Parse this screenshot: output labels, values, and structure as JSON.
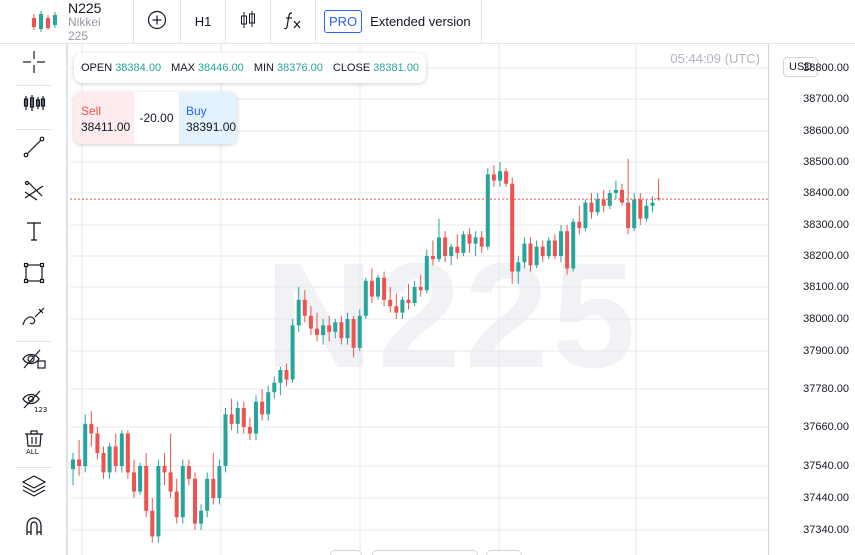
{
  "symbol": {
    "ticker": "N225",
    "name": "Nikkei 225",
    "icon": "candles-icon"
  },
  "toolbar": {
    "add_icon": "plus-circle-icon",
    "timeframe": "H1",
    "chart_type_icon": "candlestick-icon",
    "indicators_icon": "fx-icon",
    "pro_label": "PRO",
    "extended_label": "Extended version"
  },
  "left_tools": [
    {
      "name": "crosshair-icon"
    },
    {
      "name": "indicators-icon"
    },
    {
      "name": "trend-line-icon"
    },
    {
      "name": "fib-tools-icon"
    },
    {
      "name": "text-icon"
    },
    {
      "name": "rectangle-icon"
    },
    {
      "name": "brush-icon"
    },
    {
      "name": "hide-drawings-icon"
    },
    {
      "name": "hide-indicators-icon"
    },
    {
      "name": "remove-all-icon"
    },
    {
      "name": "layers-icon"
    },
    {
      "name": "magnet-icon"
    }
  ],
  "ohlc": {
    "open_label": "OPEN",
    "open": "38384.00",
    "max_label": "MAX",
    "max": "38446.00",
    "min_label": "MIN",
    "min": "38376.00",
    "close_label": "CLOSE",
    "close": "38381.00"
  },
  "trade": {
    "sell_label": "Sell",
    "sell_price": "38411.00",
    "spread": "-20.00",
    "buy_label": "Buy",
    "buy_price": "38391.00"
  },
  "time": "05:44:09 (UTC)",
  "watermark": "N225",
  "currency": "USD",
  "colors": {
    "up": "#26a69a",
    "down": "#ef5350",
    "grid": "#e6e8ec",
    "price_line": "#ef5350"
  },
  "chart_data": {
    "type": "candlestick",
    "y_ticks": [
      {
        "label": "38800.00",
        "value": 38800
      },
      {
        "label": "38700.00",
        "value": 38700
      },
      {
        "label": "38600.00",
        "value": 38600
      },
      {
        "label": "38500.00",
        "value": 38500
      },
      {
        "label": "38400.00",
        "value": 38400
      },
      {
        "label": "38300.00",
        "value": 38300
      },
      {
        "label": "38200.00",
        "value": 38200
      },
      {
        "label": "38100.00",
        "value": 38100
      },
      {
        "label": "38000.00",
        "value": 38000
      },
      {
        "label": "37900.00",
        "value": 37900
      },
      {
        "label": "37780.00",
        "value": 37780
      },
      {
        "label": "37660.00",
        "value": 37660
      },
      {
        "label": "37540.00",
        "value": 37540
      },
      {
        "label": "37440.00",
        "value": 37440
      },
      {
        "label": "37340.00",
        "value": 37340
      }
    ],
    "current_price": 38381,
    "candles": [
      [
        37530,
        37580,
        37480,
        37560
      ],
      [
        37560,
        37620,
        37510,
        37540
      ],
      [
        37540,
        37700,
        37520,
        37670
      ],
      [
        37670,
        37710,
        37600,
        37640
      ],
      [
        37640,
        37660,
        37560,
        37580
      ],
      [
        37580,
        37600,
        37500,
        37520
      ],
      [
        37520,
        37610,
        37500,
        37600
      ],
      [
        37600,
        37640,
        37520,
        37540
      ],
      [
        37540,
        37650,
        37520,
        37640
      ],
      [
        37640,
        37650,
        37500,
        37520
      ],
      [
        37520,
        37560,
        37440,
        37460
      ],
      [
        37460,
        37550,
        37450,
        37540
      ],
      [
        37540,
        37580,
        37380,
        37400
      ],
      [
        37400,
        37440,
        37300,
        37320
      ],
      [
        37320,
        37560,
        37300,
        37540
      ],
      [
        37540,
        37580,
        37480,
        37520
      ],
      [
        37520,
        37640,
        37440,
        37460
      ],
      [
        37460,
        37500,
        37360,
        37380
      ],
      [
        37380,
        37560,
        37360,
        37540
      ],
      [
        37540,
        37560,
        37480,
        37500
      ],
      [
        37500,
        37520,
        37340,
        37360
      ],
      [
        37360,
        37420,
        37340,
        37400
      ],
      [
        37400,
        37520,
        37380,
        37500
      ],
      [
        37500,
        37580,
        37420,
        37440
      ],
      [
        37440,
        37560,
        37420,
        37540
      ],
      [
        37540,
        37720,
        37520,
        37700
      ],
      [
        37700,
        37750,
        37650,
        37670
      ],
      [
        37670,
        37740,
        37640,
        37720
      ],
      [
        37720,
        37740,
        37640,
        37660
      ],
      [
        37660,
        37690,
        37620,
        37640
      ],
      [
        37640,
        37760,
        37620,
        37740
      ],
      [
        37740,
        37780,
        37680,
        37700
      ],
      [
        37700,
        37790,
        37680,
        37770
      ],
      [
        37770,
        37820,
        37750,
        37800
      ],
      [
        37800,
        37850,
        37760,
        37840
      ],
      [
        37840,
        37860,
        37790,
        37810
      ],
      [
        37810,
        38000,
        37800,
        37980
      ],
      [
        37980,
        38100,
        37960,
        38060
      ],
      [
        38060,
        38090,
        37990,
        38010
      ],
      [
        38010,
        38040,
        37950,
        37970
      ],
      [
        37970,
        38020,
        37930,
        37950
      ],
      [
        37950,
        38000,
        37920,
        37980
      ],
      [
        37980,
        38010,
        37930,
        37960
      ],
      [
        37960,
        38000,
        37940,
        37990
      ],
      [
        37990,
        38010,
        37920,
        37940
      ],
      [
        37940,
        38020,
        37920,
        38000
      ],
      [
        38000,
        38010,
        37880,
        37910
      ],
      [
        37910,
        38030,
        37900,
        38010
      ],
      [
        38010,
        38130,
        38000,
        38120
      ],
      [
        38120,
        38160,
        38050,
        38070
      ],
      [
        38070,
        38140,
        38060,
        38130
      ],
      [
        38130,
        38150,
        38040,
        38060
      ],
      [
        38060,
        38100,
        38020,
        38040
      ],
      [
        38040,
        38080,
        38000,
        38020
      ],
      [
        38020,
        38070,
        38000,
        38060
      ],
      [
        38060,
        38110,
        38030,
        38050
      ],
      [
        38050,
        38120,
        38040,
        38100
      ],
      [
        38100,
        38140,
        38070,
        38090
      ],
      [
        38090,
        38220,
        38080,
        38200
      ],
      [
        38200,
        38250,
        38170,
        38190
      ],
      [
        38190,
        38320,
        38180,
        38260
      ],
      [
        38260,
        38280,
        38180,
        38200
      ],
      [
        38200,
        38240,
        38170,
        38230
      ],
      [
        38230,
        38270,
        38190,
        38210
      ],
      [
        38210,
        38280,
        38200,
        38270
      ],
      [
        38270,
        38290,
        38210,
        38240
      ],
      [
        38240,
        38280,
        38200,
        38260
      ],
      [
        38260,
        38280,
        38210,
        38230
      ],
      [
        38230,
        38480,
        38220,
        38460
      ],
      [
        38460,
        38490,
        38420,
        38440
      ],
      [
        38440,
        38500,
        38420,
        38470
      ],
      [
        38470,
        38480,
        38420,
        38430
      ],
      [
        38430,
        38450,
        38110,
        38150
      ],
      [
        38150,
        38200,
        38110,
        38180
      ],
      [
        38180,
        38260,
        38160,
        38240
      ],
      [
        38240,
        38260,
        38150,
        38170
      ],
      [
        38170,
        38250,
        38160,
        38230
      ],
      [
        38230,
        38250,
        38180,
        38200
      ],
      [
        38200,
        38260,
        38190,
        38250
      ],
      [
        38250,
        38270,
        38190,
        38200
      ],
      [
        38200,
        38300,
        38180,
        38280
      ],
      [
        38280,
        38300,
        38140,
        38160
      ],
      [
        38160,
        38320,
        38150,
        38310
      ],
      [
        38310,
        38360,
        38270,
        38290
      ],
      [
        38290,
        38380,
        38280,
        38370
      ],
      [
        38370,
        38400,
        38320,
        38340
      ],
      [
        38340,
        38400,
        38330,
        38380
      ],
      [
        38380,
        38410,
        38340,
        38360
      ],
      [
        38360,
        38410,
        38350,
        38400
      ],
      [
        38400,
        38440,
        38380,
        38410
      ],
      [
        38410,
        38430,
        38360,
        38370
      ],
      [
        38370,
        38510,
        38270,
        38290
      ],
      [
        38290,
        38400,
        38280,
        38380
      ],
      [
        38380,
        38400,
        38300,
        38320
      ],
      [
        38320,
        38380,
        38310,
        38360
      ],
      [
        38360,
        38390,
        38340,
        38370
      ],
      [
        38384,
        38446,
        38376,
        38381
      ]
    ]
  }
}
